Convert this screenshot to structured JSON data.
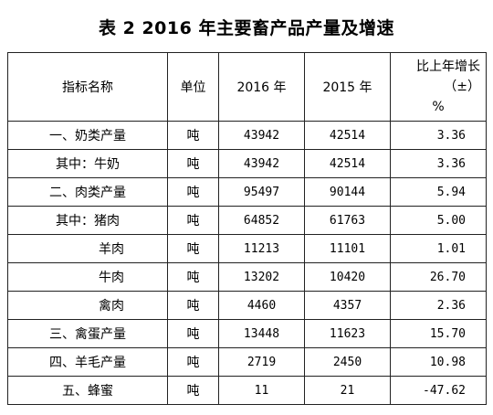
{
  "title": "表 2   2016 年主要畜产品产量及增速",
  "headers": {
    "name": "指标名称",
    "unit": "单位",
    "y2016": "2016 年",
    "y2015": "2015 年",
    "growth_line1": "比上年增长（±）",
    "growth_line2": "%"
  },
  "rows": [
    {
      "name": "一、奶类产量",
      "unit": "吨",
      "y2016": "43942",
      "y2015": "42514",
      "growth": "3.36"
    },
    {
      "name": "其中：牛奶",
      "unit": "吨",
      "y2016": "43942",
      "y2015": "42514",
      "growth": "3.36"
    },
    {
      "name": "二、肉类产量",
      "unit": "吨",
      "y2016": "95497",
      "y2015": "90144",
      "growth": "5.94"
    },
    {
      "name": "其中：猪肉",
      "unit": "吨",
      "y2016": "64852",
      "y2015": "61763",
      "growth": "5.00"
    },
    {
      "name": "羊肉",
      "unit": "吨",
      "y2016": "11213",
      "y2015": "11101",
      "growth": "1.01"
    },
    {
      "name": "牛肉",
      "unit": "吨",
      "y2016": "13202",
      "y2015": "10420",
      "growth": "26.70"
    },
    {
      "name": "禽肉",
      "unit": "吨",
      "y2016": "4460",
      "y2015": "4357",
      "growth": "2.36"
    },
    {
      "name": "三、禽蛋产量",
      "unit": "吨",
      "y2016": "13448",
      "y2015": "11623",
      "growth": "15.70"
    },
    {
      "name": "四、羊毛产量",
      "unit": "吨",
      "y2016": "2719",
      "y2015": "2450",
      "growth": "10.98"
    },
    {
      "name": "五、蜂蜜",
      "unit": "吨",
      "y2016": "11",
      "y2015": "21",
      "growth": "-47.62"
    }
  ]
}
